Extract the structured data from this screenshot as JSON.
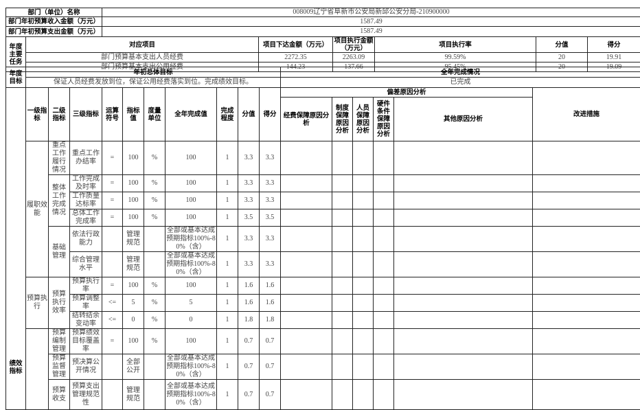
{
  "header": {
    "dept_label": "部门（单位）名称",
    "dept_value": "008009辽宁省阜新市公安局新邱公安分局-210900000",
    "income_label": "部门年初预算收入金额（万元）",
    "income_value": "1587.49",
    "expense_label": "部门年初预算支出金额（万元）",
    "expense_value": "1587.49"
  },
  "tasks": {
    "section_label": "年度主要任务",
    "columns": [
      "对应项目",
      "项目下达金额（万元）",
      "项目执行金额（万元）",
      "项目执行率",
      "分值",
      "得分"
    ],
    "rows": [
      [
        "部门预算基本支出人员经费",
        "2272.35",
        "2263.09",
        "99.59%",
        "20",
        "19.91"
      ],
      [
        "部门预算基本支出公用经费",
        "144.23",
        "137.66",
        "95.45%",
        "20",
        "19.09"
      ]
    ]
  },
  "goals": {
    "section_label": "年度目标",
    "initial_label": "年初总体目标",
    "completion_label": "全年完成情况",
    "initial_value": "保证人员经费发放到位，保证公用经费落实到位。完成绩效目标。",
    "completion_value": "已完成"
  },
  "indicators": {
    "section_label": "绩效指标",
    "columns": [
      "一级指标",
      "二级指标",
      "三级指标",
      "运算符号",
      "指标值",
      "度量单位",
      "全年完成值",
      "完成程度",
      "分值",
      "得分"
    ],
    "deviation_label": "偏差原因分析",
    "deviation_columns": [
      "经费保障原因分析",
      "制度保障原因分析",
      "人员保障原因分析",
      "硬件条件保障原因分析",
      "其他原因分析"
    ],
    "improve_label": "改进措施",
    "groups": [
      {
        "l1": "履职效能",
        "subs": [
          {
            "l2": "重点工作履行情况",
            "items": [
              [
                "重点工作办结率",
                "=",
                "100",
                "%",
                "100",
                "1",
                "3.3",
                "3.3"
              ]
            ]
          },
          {
            "l2": "整体工作完成情况",
            "items": [
              [
                "工作完成及时率",
                "=",
                "100",
                "%",
                "100",
                "1",
                "3.3",
                "3.3"
              ],
              [
                "工作质量达标率",
                "=",
                "100",
                "%",
                "100",
                "1",
                "3.3",
                "3.3"
              ],
              [
                "总体工作完成率",
                "=",
                "100",
                "%",
                "100",
                "1",
                "3.5",
                "3.5"
              ]
            ]
          },
          {
            "l2": "基础管理",
            "items": [
              [
                "依法行政能力",
                "",
                "管理规范",
                "",
                "全部或基本达成预期指标100%-80%（含）",
                "1",
                "3.3",
                "3.3"
              ],
              [
                "综合管理水平",
                "",
                "管理规范",
                "",
                "全部或基本达成预期指标100%-80%（含）",
                "1",
                "3.3",
                "3.3"
              ]
            ]
          }
        ]
      },
      {
        "l1": "预算执行",
        "subs": [
          {
            "l2": "预算执行效率",
            "items": [
              [
                "预算执行率",
                "=",
                "100",
                "%",
                "100",
                "1",
                "1.6",
                "1.6"
              ],
              [
                "预算调整率",
                "<=",
                "5",
                "%",
                "5",
                "1",
                "1.6",
                "1.6"
              ],
              [
                "结转结余变动率",
                "<=",
                "0",
                "%",
                "0",
                "1",
                "1.8",
                "1.8"
              ]
            ]
          }
        ]
      },
      {
        "l1": "",
        "subs": [
          {
            "l2": "预算编制管理",
            "items": [
              [
                "预算绩效目标覆盖率",
                "=",
                "100",
                "%",
                "100",
                "1",
                "0.7",
                "0.7"
              ]
            ]
          },
          {
            "l2": "预算监督管理",
            "items": [
              [
                "预决算公开情况",
                "",
                "全部公开",
                "",
                "全部或基本达成预期指标100%-80%（含）",
                "1",
                "0.7",
                "0.7"
              ]
            ]
          },
          {
            "l2": "预算收支",
            "items": [
              [
                "预算支出管理规范性",
                "",
                "管理规范",
                "",
                "全部或基本达成预期指标100%-80%（含）",
                "1",
                "0.7",
                "0.7"
              ]
            ]
          }
        ]
      }
    ]
  }
}
